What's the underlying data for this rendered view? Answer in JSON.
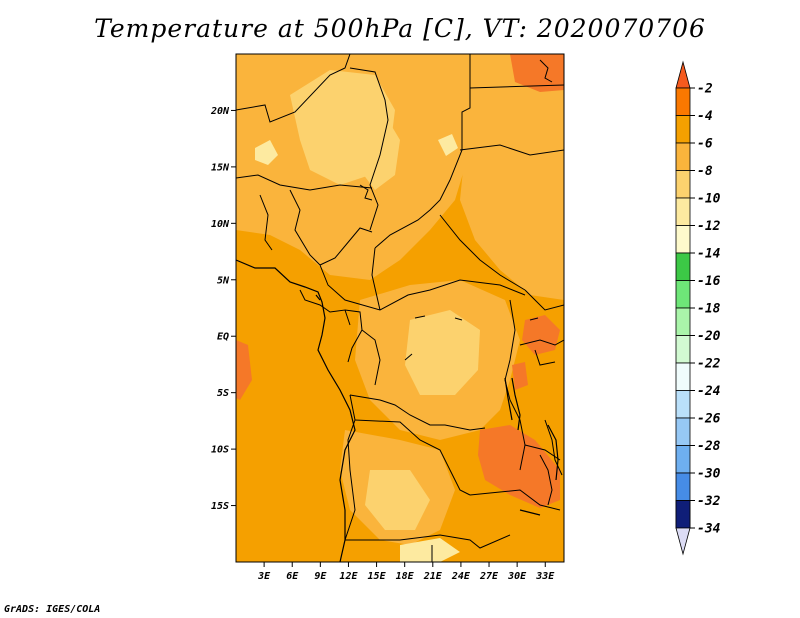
{
  "title": "Temperature at 500hPa [C], VT: 2020070706",
  "footer": "GrADS: IGES/COLA",
  "map": {
    "region": "Central Africa",
    "lat_range": [
      -20,
      25
    ],
    "lon_range": [
      0,
      35
    ],
    "y_ticks": [
      {
        "lat": 20,
        "label": "20N"
      },
      {
        "lat": 15,
        "label": "15N"
      },
      {
        "lat": 10,
        "label": "10N"
      },
      {
        "lat": 5,
        "label": "5N"
      },
      {
        "lat": 0,
        "label": "EQ"
      },
      {
        "lat": -5,
        "label": "5S"
      },
      {
        "lat": -10,
        "label": "10S"
      },
      {
        "lat": -15,
        "label": "15S"
      }
    ],
    "x_ticks": [
      {
        "lon": 3,
        "label": "3E"
      },
      {
        "lon": 6,
        "label": "6E"
      },
      {
        "lon": 9,
        "label": "9E"
      },
      {
        "lon": 12,
        "label": "12E"
      },
      {
        "lon": 15,
        "label": "15E"
      },
      {
        "lon": 18,
        "label": "18E"
      },
      {
        "lon": 21,
        "label": "21E"
      },
      {
        "lon": 24,
        "label": "24E"
      },
      {
        "lon": 27,
        "label": "27E"
      },
      {
        "lon": 30,
        "label": "30E"
      },
      {
        "lon": 33,
        "label": "33E"
      }
    ]
  },
  "colorbar": {
    "levels": [
      {
        "label": "-2",
        "color": "#f5a000"
      },
      {
        "label": "-4",
        "color": "#f5a000"
      },
      {
        "label": "-6",
        "color": "#fab43c"
      },
      {
        "label": "-8",
        "color": "#fcd26e"
      },
      {
        "label": "-10",
        "color": "#fdeaa0"
      },
      {
        "label": "-12",
        "color": "#fefacc"
      },
      {
        "label": "-14",
        "color": "#3cc846"
      },
      {
        "label": "-16",
        "color": "#6ee678"
      },
      {
        "label": "-18",
        "color": "#aaf5aa"
      },
      {
        "label": "-20",
        "color": "#d2fad2"
      },
      {
        "label": "-22",
        "color": "#f0fcfc"
      },
      {
        "label": "-24",
        "color": "#bae0fa"
      },
      {
        "label": "-26",
        "color": "#96c8f5"
      },
      {
        "label": "-28",
        "color": "#6eaff0"
      },
      {
        "label": "-30",
        "color": "#468ce6"
      },
      {
        "label": "-32",
        "color": "#2064d2"
      },
      {
        "label": "-34",
        "color": "#1450b4"
      }
    ],
    "top_color": "#f55a1e",
    "top_band_color": "#fa7800",
    "bottom_band_color": "#0f1e78",
    "bottom_color": "#dcdcf5"
  },
  "field_colors": {
    "dark_orange": "#f5a000",
    "orange": "#fab43c",
    "light_orange": "#fcd26e",
    "pale_yellow": "#fdeaa0",
    "red_orange": "#f57828"
  }
}
